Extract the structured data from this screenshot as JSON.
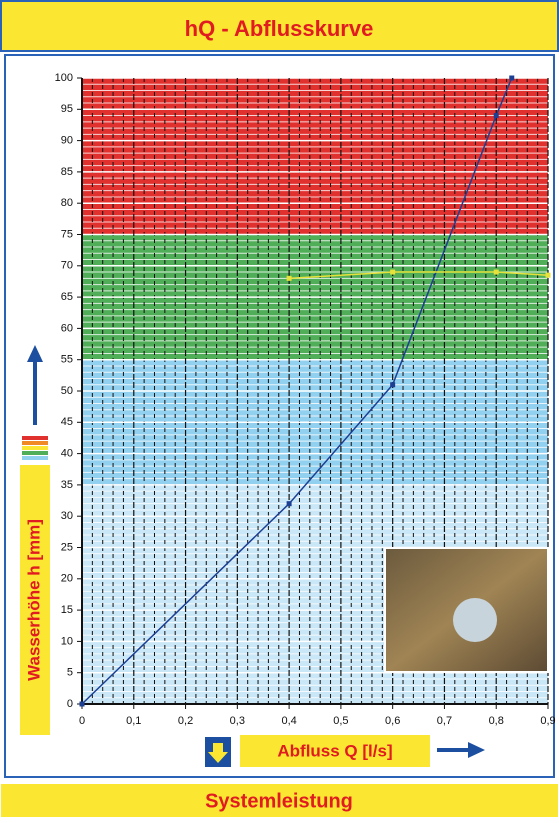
{
  "title": "hQ - Abflusskurve",
  "footer": "Systemleistung",
  "chart_data": {
    "type": "line",
    "ylabel": "Wasserhöhe h [mm]",
    "xlabel": "Abfluss Q [l/s]",
    "xlim": [
      0,
      0.9
    ],
    "ylim": [
      0,
      100
    ],
    "xticks": [
      0,
      {
        "value": 0.1,
        "label": "0,1"
      },
      {
        "value": 0.2,
        "label": "0,2"
      },
      {
        "value": 0.3,
        "label": "0,3"
      },
      {
        "value": 0.4,
        "label": "0,4"
      },
      {
        "value": 0.5,
        "label": "0,5"
      },
      {
        "value": 0.6,
        "label": "0,6"
      },
      {
        "value": 0.7,
        "label": "0,7"
      },
      {
        "value": 0.8,
        "label": "0,8"
      },
      {
        "value": 0.9,
        "label": "0,9"
      }
    ],
    "yticks": [
      0,
      5,
      10,
      15,
      20,
      25,
      30,
      35,
      40,
      45,
      50,
      55,
      60,
      65,
      70,
      75,
      80,
      85,
      90,
      95,
      100
    ],
    "grid": true,
    "bands": [
      {
        "from": 0,
        "to": 35,
        "color": "#c9e7f6"
      },
      {
        "from": 35,
        "to": 55,
        "color": "#92d0ef"
      },
      {
        "from": 55,
        "to": 75,
        "color": "#4fae57"
      },
      {
        "from": 75,
        "to": 100,
        "color": "#e0312f"
      }
    ],
    "series": [
      {
        "color": "#1c3f94",
        "x": [
          0,
          0.4,
          0.6,
          0.8,
          0.83
        ],
        "values": [
          0,
          32,
          51,
          94,
          100
        ]
      },
      {
        "color": "#e6e23c",
        "x": [
          0.4,
          0.6,
          0.8,
          0.9
        ],
        "values": [
          68,
          69,
          69,
          68.5
        ]
      }
    ]
  }
}
